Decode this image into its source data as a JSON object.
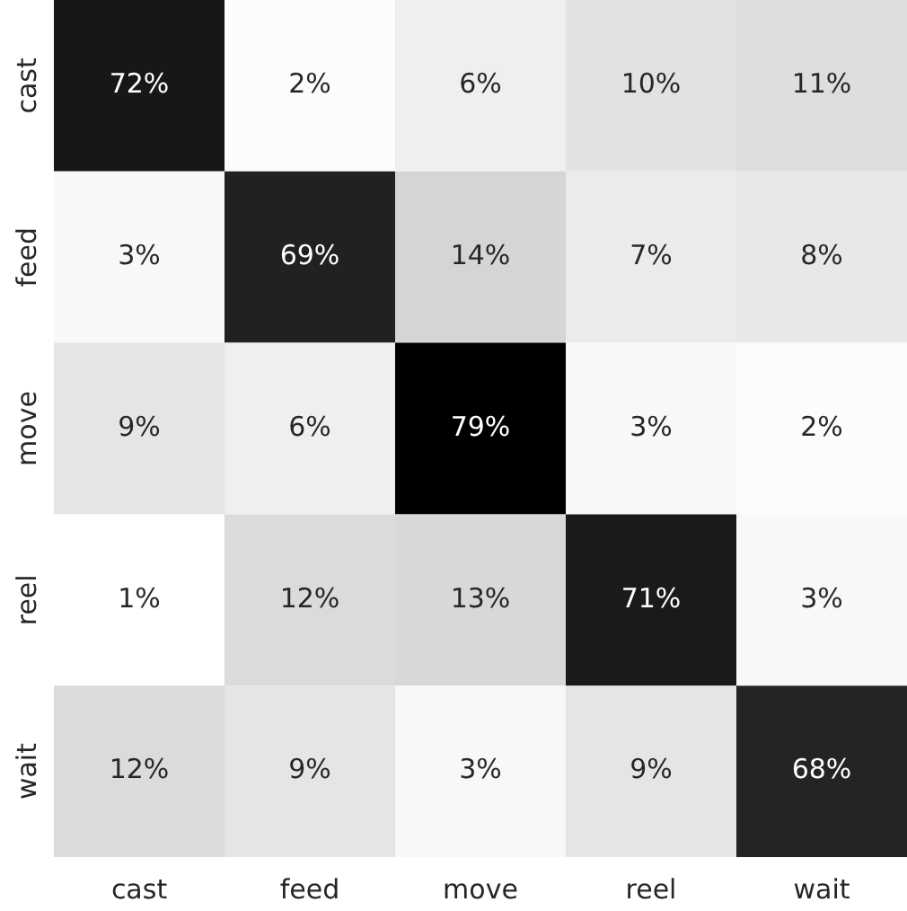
{
  "chart_data": {
    "type": "heatmap",
    "categories": [
      "cast",
      "feed",
      "move",
      "reel",
      "wait"
    ],
    "y_categories": [
      "cast",
      "feed",
      "move",
      "reel",
      "wait"
    ],
    "cells": [
      [
        72,
        2,
        6,
        10,
        11
      ],
      [
        3,
        69,
        14,
        7,
        8
      ],
      [
        9,
        6,
        79,
        3,
        2
      ],
      [
        1,
        12,
        13,
        71,
        3
      ],
      [
        12,
        9,
        3,
        9,
        68
      ]
    ],
    "cell_labels": [
      [
        "72%",
        "2%",
        "6%",
        "10%",
        "11%"
      ],
      [
        "3%",
        "69%",
        "14%",
        "7%",
        "8%"
      ],
      [
        "9%",
        "6%",
        "79%",
        "3%",
        "2%"
      ],
      [
        "1%",
        "12%",
        "13%",
        "71%",
        "3%"
      ],
      [
        "12%",
        "9%",
        "3%",
        "9%",
        "68%"
      ]
    ]
  }
}
